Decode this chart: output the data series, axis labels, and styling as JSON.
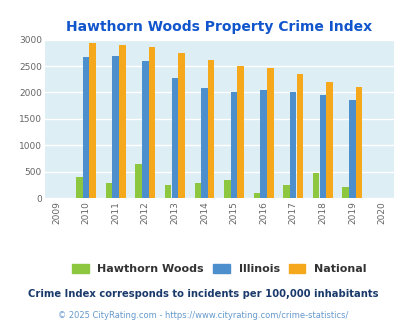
{
  "title": "Hawthorn Woods Property Crime Index",
  "years": [
    2009,
    2010,
    2011,
    2012,
    2013,
    2014,
    2015,
    2016,
    2017,
    2018,
    2019,
    2020
  ],
  "hawthorn": [
    null,
    400,
    285,
    650,
    250,
    275,
    350,
    95,
    255,
    480,
    210,
    null
  ],
  "illinois": [
    null,
    2670,
    2680,
    2590,
    2270,
    2090,
    2000,
    2050,
    2015,
    1945,
    1850,
    null
  ],
  "national": [
    null,
    2930,
    2900,
    2860,
    2745,
    2610,
    2500,
    2465,
    2355,
    2190,
    2095,
    null
  ],
  "colors": {
    "hawthorn": "#8dc63f",
    "illinois": "#4d8fcc",
    "national": "#f5a81c"
  },
  "ylim": [
    0,
    3000
  ],
  "yticks": [
    0,
    500,
    1000,
    1500,
    2000,
    2500,
    3000
  ],
  "background_color": "#ddeef5",
  "legend_labels": [
    "Hawthorn Woods",
    "Illinois",
    "National"
  ],
  "footnote1": "Crime Index corresponds to incidents per 100,000 inhabitants",
  "footnote2": "© 2025 CityRating.com - https://www.cityrating.com/crime-statistics/",
  "title_color": "#1155cc",
  "footnote1_color": "#1a3a6b",
  "footnote2_color": "#6699cc"
}
